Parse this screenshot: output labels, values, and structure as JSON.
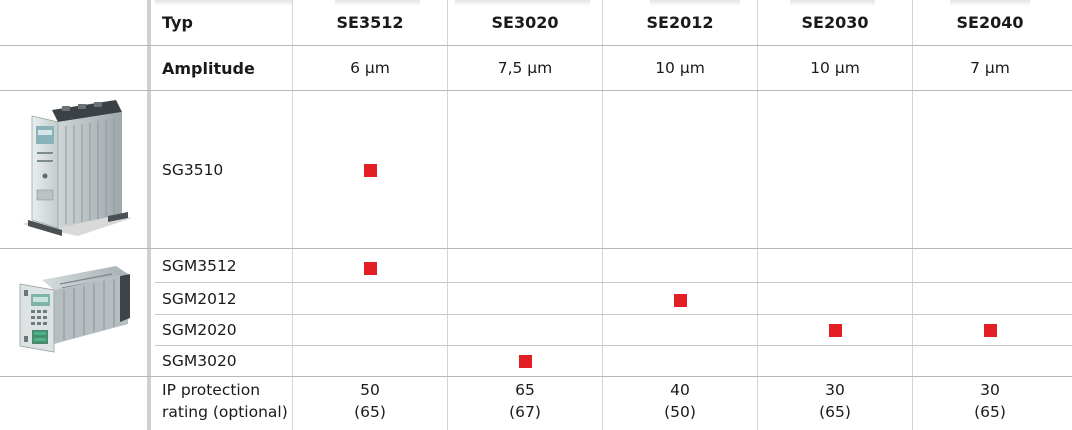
{
  "header": {
    "type_label": "Typ",
    "columns": [
      "SE3512",
      "SE3020",
      "SE2012",
      "SE2030",
      "SE2040"
    ]
  },
  "amplitude": {
    "label": "Amplitude",
    "values": [
      "6 μm",
      "7,5 μm",
      "10 μm",
      "10 μm",
      "7 μm"
    ]
  },
  "rows": [
    {
      "name": "SG3510",
      "marks": [
        true,
        false,
        false,
        false,
        false
      ]
    },
    {
      "name": "SGM3512",
      "marks": [
        true,
        false,
        false,
        false,
        false
      ]
    },
    {
      "name": "SGM2012",
      "marks": [
        false,
        false,
        true,
        false,
        false
      ]
    },
    {
      "name": "SGM2020",
      "marks": [
        false,
        false,
        false,
        true,
        true
      ]
    },
    {
      "name": "SGM3020",
      "marks": [
        false,
        true,
        false,
        false,
        false
      ]
    }
  ],
  "ip_rating": {
    "label_line1": "IP protection",
    "label_line2": "rating (optional)",
    "values": [
      {
        "main": "50",
        "optional": "(65)"
      },
      {
        "main": "65",
        "optional": "(67)"
      },
      {
        "main": "40",
        "optional": "(50)"
      },
      {
        "main": "30",
        "optional": "(65)"
      },
      {
        "main": "30",
        "optional": "(65)"
      }
    ]
  },
  "colors": {
    "marker": "#e31e24",
    "rule": "#c9c9c9"
  },
  "icons": [
    "sg3510-device-image",
    "sgm-rack-module-image"
  ]
}
